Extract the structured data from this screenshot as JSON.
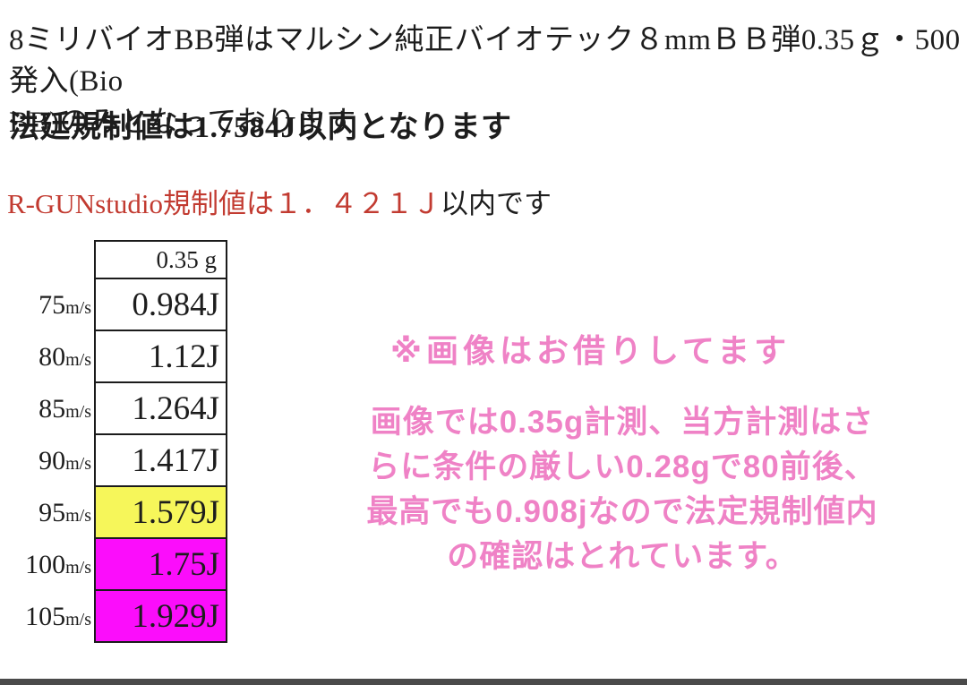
{
  "header": {
    "intro": "8ミリバイオBB弾はマルシン純正バイオテック８mmＢＢ弾0.35ｇ・500発入(Bio\nBB)のみとなっております",
    "legal_limit": "法廷規制値は1.7584J以内となります",
    "shop_limit_red": "R-GUNstudio規制値は１．４２１Ｊ",
    "shop_limit_suffix": "以内です"
  },
  "table": {
    "header": "0.35 g",
    "rows": [
      {
        "speed": "75",
        "unit": "m/s",
        "energy": "0.984J",
        "highlight": "none"
      },
      {
        "speed": "80",
        "unit": "m/s",
        "energy": "1.12J",
        "highlight": "none"
      },
      {
        "speed": "85",
        "unit": "m/s",
        "energy": "1.264J",
        "highlight": "none"
      },
      {
        "speed": "90",
        "unit": "m/s",
        "energy": "1.417J",
        "highlight": "none"
      },
      {
        "speed": "95",
        "unit": "m/s",
        "energy": "1.579J",
        "highlight": "yellow"
      },
      {
        "speed": "100",
        "unit": "m/s",
        "energy": "1.75J",
        "highlight": "magenta"
      },
      {
        "speed": "105",
        "unit": "m/s",
        "energy": "1.929J",
        "highlight": "magenta"
      }
    ]
  },
  "notes": {
    "credit": "※画像はお借りしてます",
    "measurement": "画像では0.35g計測、当方計測はさ\nらに条件の厳しい0.28gで80前後、\n最高でも0.908jなので法定規制値内\nの確認はとれています。"
  },
  "colors": {
    "accent_red": "#c23b31",
    "pink": "#ef82c6",
    "row_yellow": "#f6f65a",
    "row_magenta": "#fb0dfb",
    "bottom_bar": "#4a4a4a"
  }
}
